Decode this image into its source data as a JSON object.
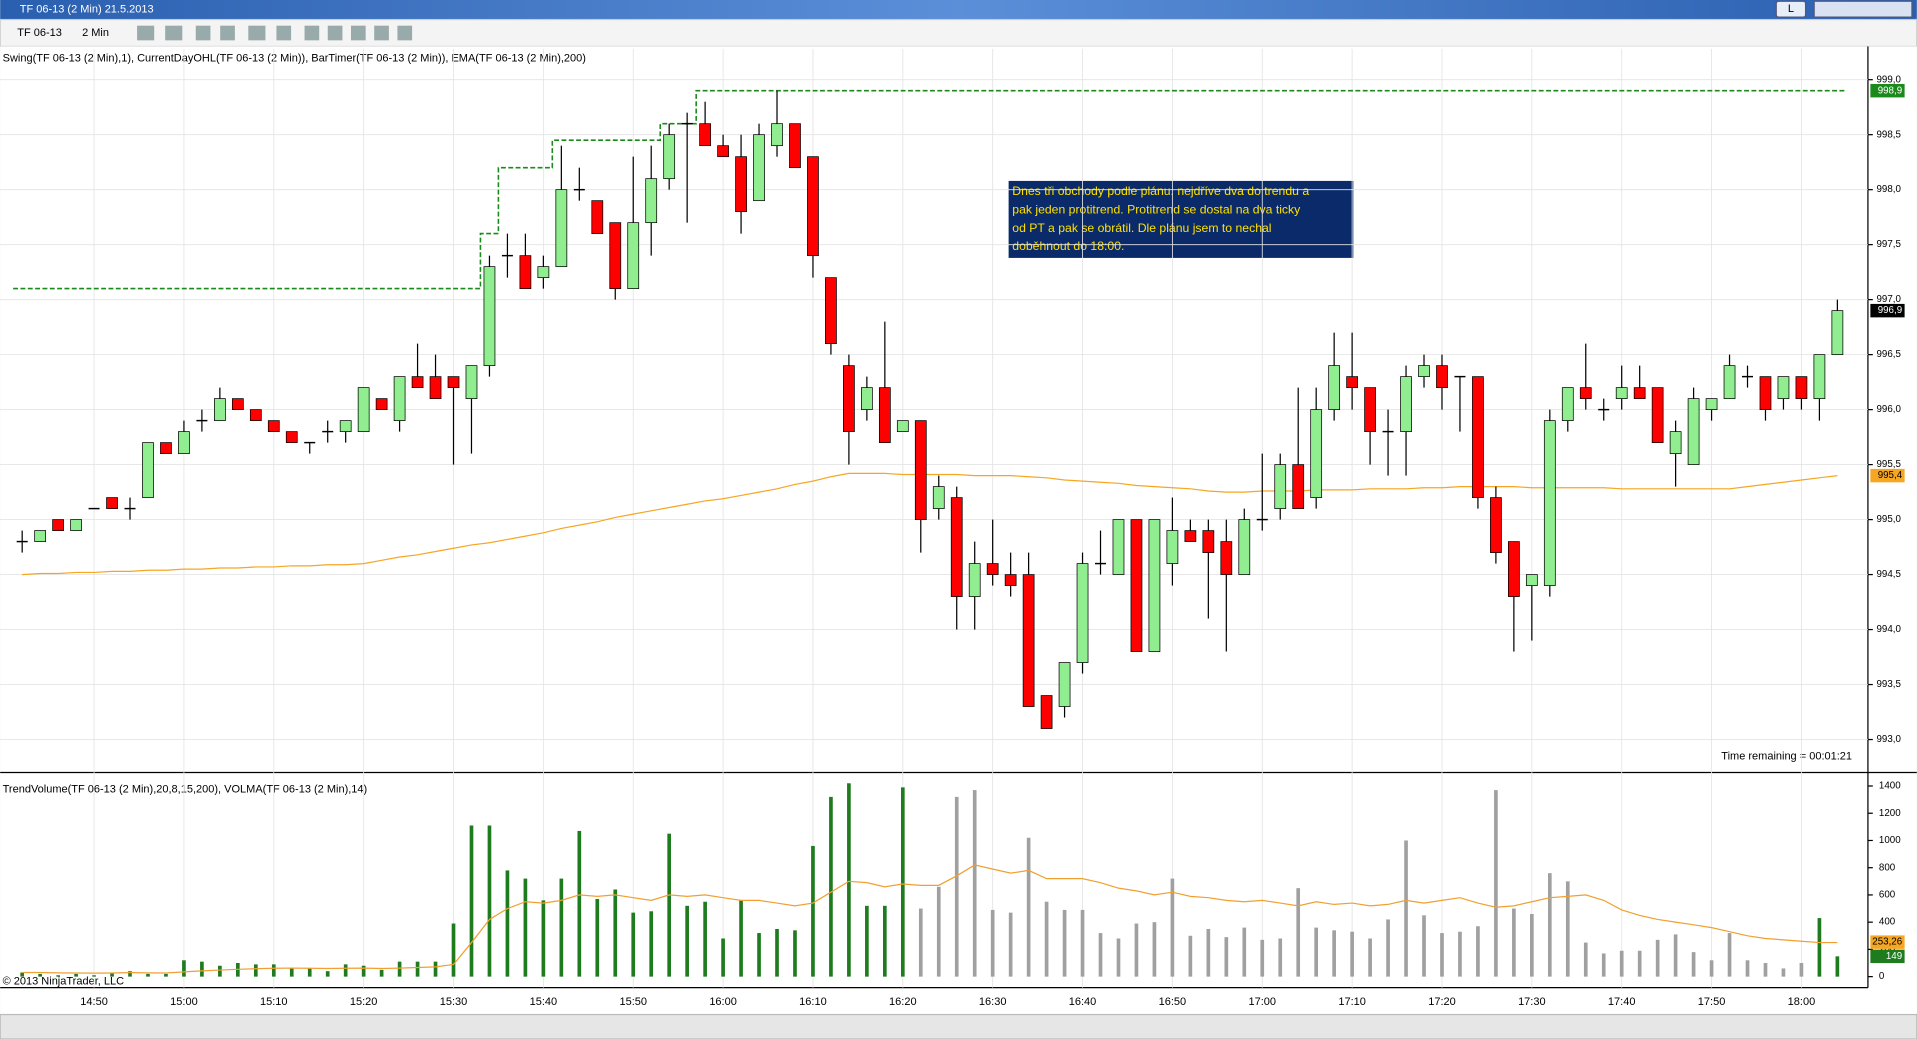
{
  "window": {
    "title": "TF 06-13 (2 Min)  21.5.2013",
    "button": "L"
  },
  "toolbar": {
    "instrument": "TF 06-13",
    "interval": "2 Min"
  },
  "footer": "© 2013 NinjaTrader, LLC",
  "chart_data": [
    {
      "type": "candlestick",
      "title": "Swing(TF 06-13 (2 Min),1), CurrentDayOHL(TF 06-13 (2 Min)), BarTimer(TF 06-13 (2 Min)), EMA(TF 06-13 (2 Min),200)",
      "categories": [
        null,
        null,
        null,
        null,
        "14:50",
        null,
        null,
        null,
        null,
        "15:00",
        null,
        null,
        null,
        null,
        "15:10",
        null,
        null,
        null,
        null,
        "15:20",
        null,
        null,
        null,
        null,
        "15:30",
        null,
        null,
        null,
        null,
        "15:40",
        null,
        null,
        null,
        null,
        "15:50",
        null,
        null,
        null,
        null,
        "16:00",
        null,
        null,
        null,
        null,
        "16:10",
        null,
        null,
        null,
        null,
        "16:20",
        null,
        null,
        null,
        null,
        "16:30",
        null,
        null,
        null,
        null,
        "16:40",
        null,
        null,
        null,
        null,
        "16:50",
        null,
        null,
        null,
        null,
        "17:00",
        null,
        null,
        null,
        null,
        "17:10",
        null,
        null,
        null,
        null,
        "17:20",
        null,
        null,
        null,
        null,
        "17:30",
        null,
        null,
        null,
        null,
        "17:40",
        null,
        null,
        null,
        null,
        "17:50",
        null,
        null,
        null,
        null,
        "18:00",
        null,
        null
      ],
      "open": [
        994.8,
        994.8,
        995.0,
        994.9,
        995.1,
        995.2,
        995.1,
        995.2,
        995.7,
        995.6,
        995.9,
        995.9,
        996.1,
        996.0,
        995.9,
        995.8,
        995.7,
        995.8,
        995.8,
        995.8,
        996.1,
        995.9,
        996.3,
        996.3,
        996.3,
        996.1,
        996.4,
        997.4,
        997.4,
        997.2,
        997.3,
        998.0,
        997.9,
        997.7,
        997.1,
        997.7,
        998.1,
        998.6,
        998.6,
        998.4,
        998.3,
        997.9,
        998.4,
        998.6,
        998.3,
        997.2,
        996.4,
        996.0,
        996.2,
        995.8,
        995.9,
        995.1,
        995.2,
        994.3,
        994.6,
        994.5,
        994.5,
        993.4,
        993.3,
        993.7,
        994.6,
        994.5,
        995.0,
        993.8,
        994.6,
        994.9,
        994.9,
        994.8,
        994.5,
        995.0,
        995.1,
        995.5,
        995.2,
        996.0,
        996.3,
        996.2,
        995.8,
        995.8,
        996.3,
        996.4,
        996.3,
        996.3,
        995.2,
        994.8,
        994.4,
        994.4,
        995.9,
        996.2,
        996.0,
        996.1,
        996.2,
        996.2,
        995.6,
        995.5,
        996.0,
        996.1,
        996.3,
        996.3,
        996.1,
        996.3,
        996.1,
        996.5
      ],
      "high": [
        994.9,
        994.9,
        995.0,
        995.0,
        995.1,
        995.2,
        995.2,
        995.7,
        995.7,
        995.9,
        996.0,
        996.2,
        996.1,
        996.0,
        995.9,
        995.8,
        995.7,
        995.9,
        995.9,
        996.2,
        996.1,
        996.3,
        996.6,
        996.5,
        996.3,
        996.4,
        997.4,
        997.6,
        997.6,
        997.4,
        998.4,
        998.2,
        997.9,
        997.7,
        998.3,
        998.4,
        998.6,
        998.7,
        998.8,
        998.5,
        998.5,
        998.6,
        998.9,
        998.6,
        998.3,
        997.2,
        996.5,
        996.3,
        996.8,
        995.9,
        995.9,
        995.4,
        995.3,
        994.8,
        995.0,
        994.7,
        994.7,
        993.4,
        993.7,
        994.7,
        994.9,
        995.0,
        995.0,
        995.0,
        995.2,
        995.0,
        995.0,
        995.0,
        995.1,
        995.6,
        995.6,
        996.2,
        996.2,
        996.7,
        996.7,
        996.2,
        996.0,
        996.4,
        996.5,
        996.5,
        996.3,
        996.3,
        995.3,
        994.8,
        994.5,
        996.0,
        996.2,
        996.6,
        996.1,
        996.4,
        996.4,
        996.2,
        995.9,
        996.2,
        996.1,
        996.5,
        996.4,
        996.3,
        996.3,
        996.3,
        996.5,
        997.0
      ],
      "low": [
        994.7,
        994.8,
        994.9,
        994.9,
        995.1,
        995.1,
        995.0,
        995.2,
        995.6,
        995.6,
        995.8,
        995.9,
        996.0,
        995.9,
        995.8,
        995.7,
        995.6,
        995.7,
        995.7,
        995.8,
        996.0,
        995.8,
        996.2,
        996.1,
        995.5,
        995.6,
        996.3,
        997.2,
        997.1,
        997.1,
        997.3,
        997.9,
        997.6,
        997.0,
        997.1,
        997.4,
        998.0,
        997.7,
        998.4,
        998.3,
        997.6,
        997.9,
        998.3,
        998.2,
        997.2,
        996.5,
        995.5,
        995.9,
        995.7,
        995.8,
        994.7,
        995.0,
        994.0,
        994.0,
        994.4,
        994.3,
        993.3,
        993.1,
        993.2,
        993.6,
        994.5,
        994.5,
        993.8,
        993.8,
        994.4,
        994.8,
        994.1,
        993.8,
        994.5,
        994.9,
        995.0,
        995.1,
        995.1,
        995.9,
        996.0,
        995.5,
        995.4,
        995.4,
        996.2,
        996.0,
        995.8,
        995.1,
        994.6,
        993.8,
        993.9,
        994.3,
        995.8,
        996.0,
        995.9,
        996.0,
        996.1,
        995.7,
        995.3,
        995.5,
        995.9,
        996.1,
        996.2,
        995.9,
        996.0,
        996.0,
        995.9,
        996.5
      ],
      "close": [
        994.8,
        994.9,
        994.9,
        995.0,
        995.1,
        995.1,
        995.1,
        995.7,
        995.6,
        995.8,
        995.9,
        996.1,
        996.0,
        995.9,
        995.8,
        995.7,
        995.7,
        995.8,
        995.9,
        996.2,
        996.0,
        996.3,
        996.2,
        996.1,
        996.2,
        996.4,
        997.3,
        997.4,
        997.1,
        997.3,
        998.0,
        998.0,
        997.6,
        997.1,
        997.7,
        998.1,
        998.5,
        998.6,
        998.4,
        998.3,
        997.8,
        998.5,
        998.6,
        998.2,
        997.4,
        996.6,
        995.8,
        996.2,
        995.7,
        995.9,
        995.0,
        995.3,
        994.3,
        994.6,
        994.5,
        994.4,
        993.3,
        993.1,
        993.7,
        994.6,
        994.6,
        995.0,
        993.8,
        995.0,
        994.9,
        994.8,
        994.7,
        994.5,
        995.0,
        995.0,
        995.5,
        995.1,
        996.0,
        996.4,
        996.2,
        995.8,
        995.8,
        996.3,
        996.4,
        996.2,
        996.3,
        995.2,
        994.7,
        994.3,
        994.5,
        995.9,
        996.2,
        996.1,
        996.0,
        996.2,
        996.1,
        995.7,
        995.8,
        996.1,
        996.1,
        996.4,
        996.3,
        996.0,
        996.3,
        996.1,
        996.5,
        996.9
      ],
      "up_color": "#90ee90",
      "down_color": "#ff0000",
      "doji_color": "#000000",
      "ema": {
        "color": "#f5a623",
        "values": [
          994.5,
          994.51,
          994.51,
          994.52,
          994.52,
          994.53,
          994.53,
          994.54,
          994.54,
          994.55,
          994.55,
          994.56,
          994.56,
          994.57,
          994.57,
          994.58,
          994.58,
          994.59,
          994.59,
          994.6,
          994.63,
          994.66,
          994.68,
          994.71,
          994.74,
          994.77,
          994.79,
          994.82,
          994.85,
          994.88,
          994.92,
          994.95,
          994.98,
          995.02,
          995.05,
          995.08,
          995.11,
          995.14,
          995.17,
          995.19,
          995.22,
          995.25,
          995.28,
          995.32,
          995.35,
          995.39,
          995.42,
          995.42,
          995.42,
          995.41,
          995.41,
          995.41,
          995.41,
          995.4,
          995.4,
          995.4,
          995.39,
          995.38,
          995.36,
          995.35,
          995.34,
          995.33,
          995.31,
          995.3,
          995.29,
          995.28,
          995.26,
          995.25,
          995.25,
          995.26,
          995.26,
          995.26,
          995.27,
          995.27,
          995.27,
          995.28,
          995.28,
          995.28,
          995.29,
          995.29,
          995.3,
          995.3,
          995.3,
          995.3,
          995.29,
          995.29,
          995.29,
          995.29,
          995.29,
          995.28,
          995.28,
          995.28,
          995.28,
          995.28,
          995.28,
          995.28,
          995.3,
          995.32,
          995.34,
          995.36,
          995.38,
          995.4
        ]
      },
      "swing_line": {
        "color": "#1a8a1a",
        "values": [
          997.1,
          997.1,
          997.1,
          997.1,
          997.1,
          997.1,
          997.1,
          997.1,
          997.1,
          997.1,
          997.1,
          997.1,
          997.1,
          997.1,
          997.1,
          997.1,
          997.1,
          997.1,
          997.1,
          997.1,
          997.1,
          997.1,
          997.1,
          997.1,
          997.1,
          997.1,
          997.6,
          998.2,
          998.2,
          998.2,
          998.45,
          998.45,
          998.45,
          998.45,
          998.45,
          998.45,
          998.6,
          998.6,
          998.9,
          998.9,
          998.9,
          998.9,
          998.9,
          998.9,
          998.9,
          998.9,
          998.9,
          998.9,
          998.9,
          998.9,
          998.9,
          998.9,
          998.9,
          998.9,
          998.9,
          998.9,
          998.9,
          998.9,
          998.9,
          998.9,
          998.9,
          998.9,
          998.9,
          998.9,
          998.9,
          998.9,
          998.9,
          998.9,
          998.9,
          998.9,
          998.9,
          998.9,
          998.9,
          998.9,
          998.9,
          998.9,
          998.9,
          998.9,
          998.9,
          998.9,
          998.9,
          998.9,
          998.9,
          998.9,
          998.9,
          998.9,
          998.9,
          998.9,
          998.9,
          998.9,
          998.9,
          998.9,
          998.9,
          998.9,
          998.9,
          998.9,
          998.9,
          998.9,
          998.9,
          998.9,
          998.9,
          998.9
        ]
      },
      "ylim": [
        992.7,
        999.28
      ],
      "yticks": [
        {
          "value": 993.0,
          "label": "993,0"
        },
        {
          "value": 993.5,
          "label": "993,5"
        },
        {
          "value": 994.0,
          "label": "994,0"
        },
        {
          "value": 994.5,
          "label": "994,5"
        },
        {
          "value": 995.0,
          "label": "995,0"
        },
        {
          "value": 995.5,
          "label": "995,5"
        },
        {
          "value": 996.0,
          "label": "996,0"
        },
        {
          "value": 996.5,
          "label": "996,5"
        },
        {
          "value": 997.0,
          "label": "997,0"
        },
        {
          "value": 997.5,
          "label": "997,5"
        },
        {
          "value": 998.0,
          "label": "998,0"
        },
        {
          "value": 998.5,
          "label": "998,5"
        },
        {
          "value": 999.0,
          "label": "999,0"
        }
      ],
      "grid": true,
      "price_markers": [
        {
          "value": 998.9,
          "label": "998,9",
          "color": "#1a8a1a",
          "text_color": "#ffffff"
        },
        {
          "value": 996.9,
          "label": "996,9",
          "color": "#000000",
          "text_color": "#ffffff"
        },
        {
          "value": 995.4,
          "label": "995,4",
          "color": "#f5a623",
          "text_color": "#000000"
        }
      ],
      "annotation": [
        "Dnes tři obchody podle plánu. nejdříve dva do trendu a",
        "pak jeden protitrend. Protitrend se dostal na dva ticky",
        "od PT a pak se obrátil. Dle plánu jsem to nechal",
        "doběhnout do 18:00."
      ],
      "time_remaining": "Time remaining = 00:01:21"
    },
    {
      "type": "bar",
      "title": "TrendVolume(TF 06-13 (2 Min),20,8,15,200), VOLMA(TF 06-13 (2 Min),14)",
      "values": [
        30,
        20,
        10,
        20,
        10,
        30,
        40,
        20,
        20,
        120,
        110,
        80,
        100,
        90,
        90,
        60,
        60,
        40,
        90,
        80,
        50,
        110,
        110,
        110,
        390,
        1110,
        1110,
        780,
        720,
        560,
        720,
        1070,
        570,
        640,
        470,
        480,
        1050,
        520,
        550,
        280,
        560,
        320,
        350,
        340,
        960,
        1320,
        1420,
        520,
        520,
        1390,
        500,
        660,
        1320,
        1370,
        490,
        470,
        1020,
        550,
        490,
        490,
        320,
        280,
        390,
        400,
        720,
        300,
        350,
        290,
        360,
        270,
        280,
        650,
        360,
        340,
        330,
        280,
        420,
        1000,
        450,
        320,
        330,
        370,
        1370,
        500,
        460,
        760,
        700,
        250,
        170,
        190,
        190,
        270,
        310,
        180,
        120,
        320,
        120,
        100,
        60,
        100,
        430,
        149
      ],
      "colors": [
        "#1e7b1e",
        "#1e7b1e",
        "#1e7b1e",
        "#1e7b1e",
        "#1e7b1e",
        "#1e7b1e",
        "#1e7b1e",
        "#1e7b1e",
        "#1e7b1e",
        "#1e7b1e",
        "#1e7b1e",
        "#1e7b1e",
        "#1e7b1e",
        "#1e7b1e",
        "#1e7b1e",
        "#1e7b1e",
        "#1e7b1e",
        "#1e7b1e",
        "#1e7b1e",
        "#1e7b1e",
        "#1e7b1e",
        "#1e7b1e",
        "#1e7b1e",
        "#1e7b1e",
        "#1e7b1e",
        "#1e7b1e",
        "#1e7b1e",
        "#1e7b1e",
        "#1e7b1e",
        "#1e7b1e",
        "#1e7b1e",
        "#1e7b1e",
        "#1e7b1e",
        "#1e7b1e",
        "#1e7b1e",
        "#1e7b1e",
        "#1e7b1e",
        "#1e7b1e",
        "#1e7b1e",
        "#1e7b1e",
        "#1e7b1e",
        "#1e7b1e",
        "#1e7b1e",
        "#1e7b1e",
        "#1e7b1e",
        "#1e7b1e",
        "#1e7b1e",
        "#1e7b1e",
        "#1e7b1e",
        "#1e7b1e",
        "#a0a0a0",
        "#a0a0a0",
        "#a0a0a0",
        "#a0a0a0",
        "#a0a0a0",
        "#a0a0a0",
        "#a0a0a0",
        "#a0a0a0",
        "#a0a0a0",
        "#a0a0a0",
        "#a0a0a0",
        "#a0a0a0",
        "#a0a0a0",
        "#a0a0a0",
        "#a0a0a0",
        "#a0a0a0",
        "#a0a0a0",
        "#a0a0a0",
        "#a0a0a0",
        "#a0a0a0",
        "#a0a0a0",
        "#a0a0a0",
        "#a0a0a0",
        "#a0a0a0",
        "#a0a0a0",
        "#a0a0a0",
        "#a0a0a0",
        "#a0a0a0",
        "#a0a0a0",
        "#a0a0a0",
        "#a0a0a0",
        "#a0a0a0",
        "#a0a0a0",
        "#a0a0a0",
        "#a0a0a0",
        "#a0a0a0",
        "#a0a0a0",
        "#a0a0a0",
        "#a0a0a0",
        "#a0a0a0",
        "#a0a0a0",
        "#a0a0a0",
        "#a0a0a0",
        "#a0a0a0",
        "#a0a0a0",
        "#a0a0a0",
        "#a0a0a0",
        "#a0a0a0",
        "#a0a0a0",
        "#a0a0a0",
        "#1e7b1e",
        "#1e7b1e"
      ],
      "volma": {
        "color": "#f0a030",
        "values": [
          30,
          30,
          28,
          27,
          26,
          27,
          29,
          28,
          27,
          35,
          42,
          48,
          54,
          58,
          62,
          63,
          62,
          60,
          62,
          63,
          60,
          63,
          67,
          72,
          90,
          250,
          420,
          500,
          550,
          540,
          560,
          600,
          590,
          600,
          580,
          560,
          600,
          590,
          600,
          580,
          560,
          560,
          540,
          520,
          540,
          620,
          700,
          690,
          660,
          680,
          670,
          670,
          740,
          820,
          790,
          760,
          780,
          720,
          720,
          720,
          690,
          650,
          630,
          600,
          620,
          590,
          580,
          560,
          550,
          560,
          540,
          520,
          550,
          530,
          540,
          520,
          530,
          560,
          540,
          560,
          580,
          540,
          510,
          520,
          550,
          580,
          590,
          600,
          560,
          490,
          450,
          420,
          400,
          380,
          360,
          330,
          300,
          280,
          270,
          260,
          250,
          250
        ]
      },
      "ylim": [
        -81,
        1499
      ],
      "yticks": [
        0,
        200,
        400,
        600,
        800,
        1000,
        1200,
        1400
      ],
      "markers": [
        {
          "value": 253.26,
          "label": "253,26",
          "color": "#f5a623",
          "text_color": "#000000"
        },
        {
          "value": 149,
          "label": "149",
          "color": "#1e7b1e",
          "text_color": "#ffffff"
        }
      ]
    }
  ]
}
